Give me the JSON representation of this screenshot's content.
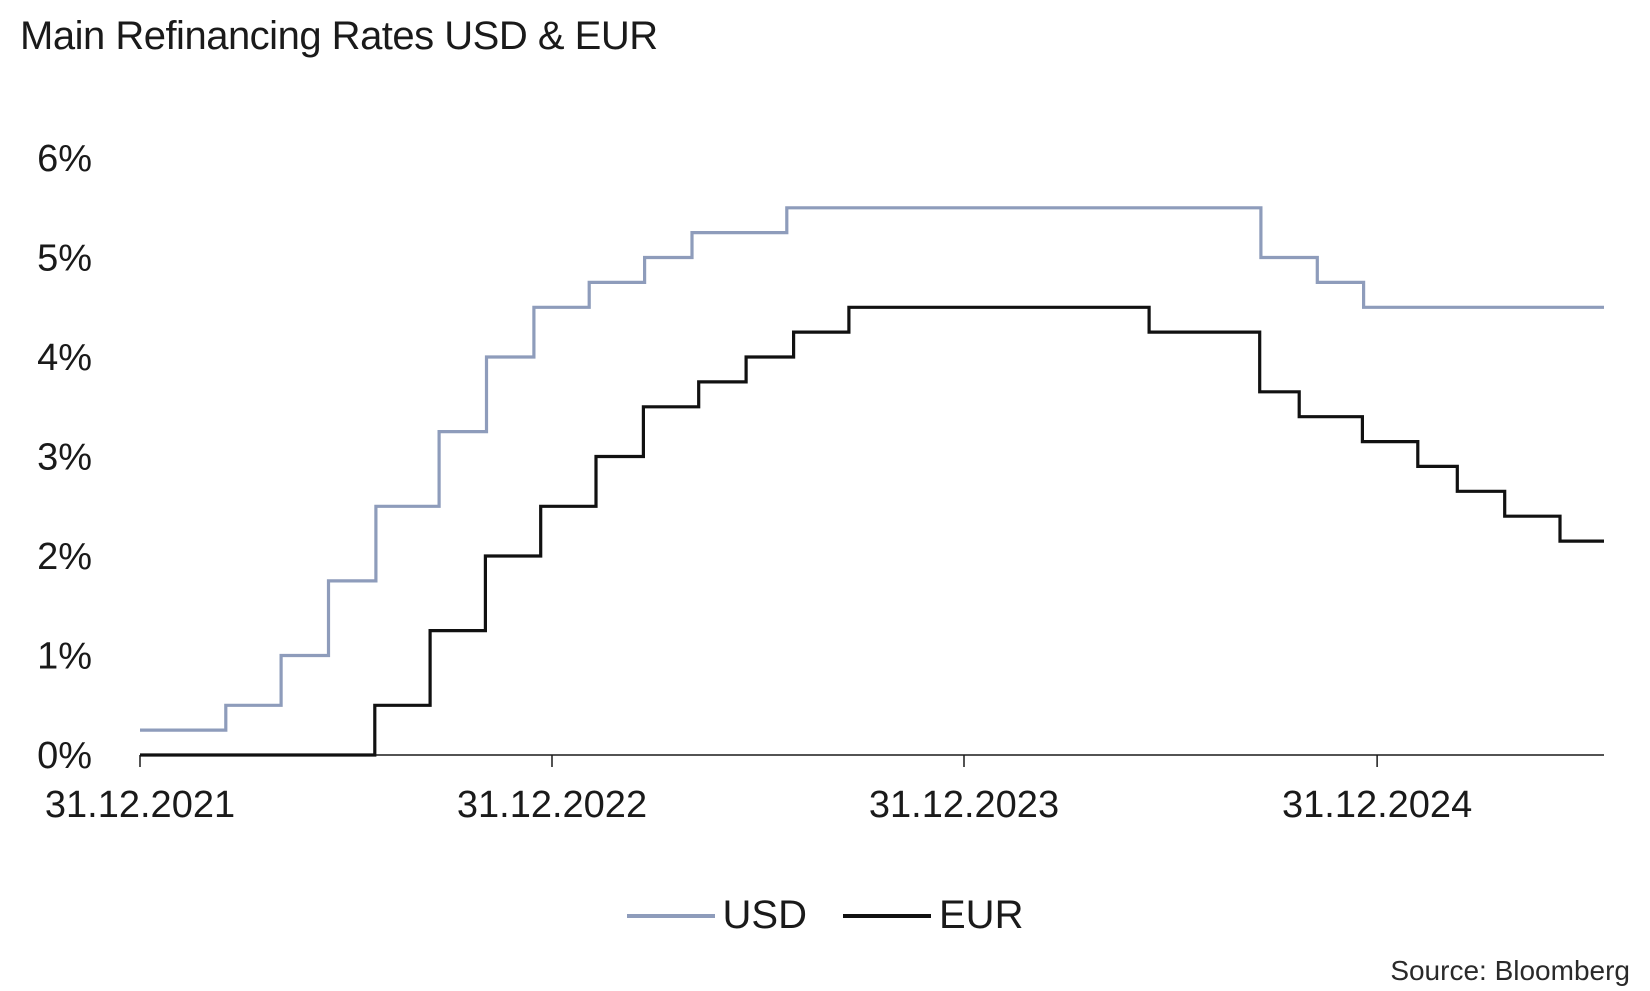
{
  "chart_data": {
    "type": "line",
    "title": "Main Refinancing Rates USD & EUR",
    "xlabel": "",
    "ylabel": "",
    "x_tick_labels": [
      "31.12.2021",
      "31.12.2022",
      "31.12.2023",
      "31.12.2024"
    ],
    "x_tick_dates": [
      "2021-12-31",
      "2022-12-31",
      "2023-12-31",
      "2024-12-31"
    ],
    "xlim": [
      "2021-12-31",
      "2025-07-20"
    ],
    "y_tick_labels": [
      "0%",
      "1%",
      "2%",
      "3%",
      "4%",
      "5%",
      "6%"
    ],
    "y_tick_values": [
      0,
      1,
      2,
      3,
      4,
      5,
      6
    ],
    "ylim": [
      0,
      6
    ],
    "grid": false,
    "legend_position": "bottom-center",
    "step": true,
    "series": [
      {
        "name": "USD",
        "color": "#8e9cbb",
        "points": [
          {
            "date": "2021-12-31",
            "value": 0.25
          },
          {
            "date": "2022-03-17",
            "value": 0.5
          },
          {
            "date": "2022-05-05",
            "value": 1.0
          },
          {
            "date": "2022-06-16",
            "value": 1.75
          },
          {
            "date": "2022-07-28",
            "value": 2.5
          },
          {
            "date": "2022-09-22",
            "value": 3.25
          },
          {
            "date": "2022-11-03",
            "value": 4.0
          },
          {
            "date": "2022-12-15",
            "value": 4.5
          },
          {
            "date": "2023-02-02",
            "value": 4.75
          },
          {
            "date": "2023-03-23",
            "value": 5.0
          },
          {
            "date": "2023-05-04",
            "value": 5.25
          },
          {
            "date": "2023-07-27",
            "value": 5.5
          },
          {
            "date": "2024-09-19",
            "value": 5.0
          },
          {
            "date": "2024-11-08",
            "value": 4.75
          },
          {
            "date": "2024-12-19",
            "value": 4.5
          },
          {
            "date": "2025-07-20",
            "value": 4.5
          }
        ]
      },
      {
        "name": "EUR",
        "color": "#111111",
        "points": [
          {
            "date": "2021-12-31",
            "value": 0.0
          },
          {
            "date": "2022-07-27",
            "value": 0.5
          },
          {
            "date": "2022-09-14",
            "value": 1.25
          },
          {
            "date": "2022-11-02",
            "value": 2.0
          },
          {
            "date": "2022-12-21",
            "value": 2.5
          },
          {
            "date": "2023-02-08",
            "value": 3.0
          },
          {
            "date": "2023-03-22",
            "value": 3.5
          },
          {
            "date": "2023-05-10",
            "value": 3.75
          },
          {
            "date": "2023-06-21",
            "value": 4.0
          },
          {
            "date": "2023-08-02",
            "value": 4.25
          },
          {
            "date": "2023-09-20",
            "value": 4.5
          },
          {
            "date": "2024-06-12",
            "value": 4.25
          },
          {
            "date": "2024-09-18",
            "value": 3.65
          },
          {
            "date": "2024-10-23",
            "value": 3.4
          },
          {
            "date": "2024-12-18",
            "value": 3.15
          },
          {
            "date": "2025-02-05",
            "value": 2.9
          },
          {
            "date": "2025-03-12",
            "value": 2.65
          },
          {
            "date": "2025-04-23",
            "value": 2.4
          },
          {
            "date": "2025-06-11",
            "value": 2.15
          },
          {
            "date": "2025-07-20",
            "value": 2.15
          }
        ]
      }
    ]
  },
  "legend": {
    "items": [
      {
        "label": "USD",
        "color": "#8e9cbb"
      },
      {
        "label": "EUR",
        "color": "#111111"
      }
    ]
  },
  "source": "Source: Bloomberg",
  "colors": {
    "axis": "#1a1a1a",
    "background": "#ffffff"
  }
}
